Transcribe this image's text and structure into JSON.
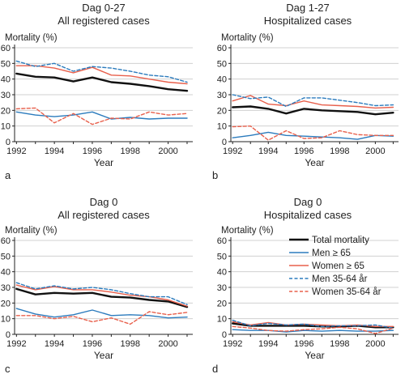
{
  "legend": [
    {
      "label": "Total mortality",
      "color": "#111111",
      "dash": "solid",
      "width": 2.4
    },
    {
      "label": "Men ≥ 65",
      "color": "#2b7bbd",
      "dash": "solid",
      "width": 1.4
    },
    {
      "label": "Women ≥ 65",
      "color": "#e8604c",
      "dash": "solid",
      "width": 1.4
    },
    {
      "label": "Men 35-64 år",
      "color": "#2b7bbd",
      "dash": "dashed",
      "width": 1.4
    },
    {
      "label": "Women 35-64 år",
      "color": "#e8604c",
      "dash": "dashed",
      "width": 1.4
    }
  ],
  "chart_data": [
    {
      "type": "line",
      "panel_label": "a",
      "title": "Dag 0-27",
      "subtitle": "All registered cases",
      "ylabel": "Mortality (%)",
      "xlabel": "Year",
      "x": [
        1992,
        1993,
        1994,
        1995,
        1996,
        1997,
        1998,
        1999,
        2000,
        2001
      ],
      "xticks": [
        1992,
        1994,
        1996,
        1998,
        2000
      ],
      "ylim": [
        0,
        60
      ],
      "yticks": [
        0,
        10,
        20,
        30,
        40,
        50,
        60
      ],
      "grid": true,
      "series": [
        {
          "name": "Total mortality",
          "values": [
            43.5,
            41.5,
            41,
            38.5,
            41,
            38,
            37,
            35.5,
            33.5,
            32.5
          ]
        },
        {
          "name": "Men ≥ 65",
          "values": [
            19,
            17,
            16,
            17,
            19,
            14.5,
            15.5,
            14.5,
            15,
            15
          ]
        },
        {
          "name": "Women ≥ 65",
          "values": [
            48.5,
            48.5,
            47,
            44,
            47.5,
            42.5,
            42,
            40,
            38,
            37
          ]
        },
        {
          "name": "Men 35-64 år",
          "values": [
            51.5,
            48,
            50,
            45,
            48,
            47,
            45,
            42.5,
            41.5,
            38
          ]
        },
        {
          "name": "Women 35-64 år",
          "values": [
            21,
            21.5,
            12,
            18,
            11,
            15,
            14.5,
            19,
            17,
            18
          ]
        }
      ]
    },
    {
      "type": "line",
      "panel_label": "b",
      "title": "Dag 1-27",
      "subtitle": "Hospitalized cases",
      "ylabel": "Mortality (%)",
      "xlabel": "Year",
      "x": [
        1992,
        1993,
        1994,
        1995,
        1996,
        1997,
        1998,
        1999,
        2000,
        2001
      ],
      "xticks": [
        1992,
        1994,
        1996,
        1998,
        2000
      ],
      "ylim": [
        0,
        60
      ],
      "yticks": [
        0,
        10,
        20,
        30,
        40,
        50,
        60
      ],
      "grid": true,
      "series": [
        {
          "name": "Total mortality",
          "values": [
            22,
            22.5,
            21,
            18,
            21,
            20,
            19.5,
            19,
            17.5,
            18.5
          ]
        },
        {
          "name": "Men ≥ 65",
          "values": [
            2.5,
            4,
            6,
            4,
            3.5,
            3,
            2.5,
            1.5,
            4,
            3.5
          ]
        },
        {
          "name": "Women ≥ 65",
          "values": [
            26,
            29.5,
            24,
            23,
            26,
            23.5,
            23,
            22.5,
            21.5,
            22
          ]
        },
        {
          "name": "Men 35-64 år",
          "values": [
            30,
            27.5,
            28.5,
            22.5,
            28,
            28,
            26.5,
            25,
            23,
            23.5
          ]
        },
        {
          "name": "Women 35-64 år",
          "values": [
            9.5,
            10,
            1,
            7,
            2,
            2.5,
            7,
            4.5,
            4,
            4
          ]
        }
      ]
    },
    {
      "type": "line",
      "panel_label": "c",
      "title": "Dag 0",
      "subtitle": "All registered cases",
      "ylabel": "Mortality (%)",
      "xlabel": "Year",
      "x": [
        1992,
        1993,
        1994,
        1995,
        1996,
        1997,
        1998,
        1999,
        2000,
        2001
      ],
      "xticks": [
        1992,
        1994,
        1996,
        1998,
        2000
      ],
      "ylim": [
        0,
        60
      ],
      "yticks": [
        0,
        10,
        20,
        30,
        40,
        50,
        60
      ],
      "grid": true,
      "series": [
        {
          "name": "Total mortality",
          "values": [
            29,
            25.5,
            26.5,
            26,
            26.5,
            24,
            23.5,
            22,
            21,
            17.5
          ]
        },
        {
          "name": "Men ≥ 65",
          "values": [
            16.5,
            13,
            11,
            12.5,
            15.5,
            12,
            12.5,
            12,
            10.5,
            11
          ]
        },
        {
          "name": "Women ≥ 65",
          "values": [
            31.5,
            28.5,
            30.5,
            28.5,
            28.5,
            27,
            25,
            24,
            22,
            18
          ]
        },
        {
          "name": "Men 35-64 år",
          "values": [
            33,
            29,
            31,
            29,
            30,
            28.5,
            26,
            24,
            24,
            19
          ]
        },
        {
          "name": "Women 35-64 år",
          "values": [
            12,
            12,
            10,
            11.5,
            8,
            10.5,
            6.5,
            14.5,
            12.5,
            14
          ]
        }
      ]
    },
    {
      "type": "line",
      "panel_label": "d",
      "title": "Dag 0",
      "subtitle": "Hospitalized cases",
      "ylabel": "Mortality (%)",
      "xlabel": "Year",
      "x": [
        1992,
        1993,
        1994,
        1995,
        1996,
        1997,
        1998,
        1999,
        2000,
        2001
      ],
      "xticks": [
        1992,
        1994,
        1996,
        1998,
        2000
      ],
      "ylim": [
        0,
        60
      ],
      "yticks": [
        0,
        10,
        20,
        30,
        40,
        50,
        60
      ],
      "grid": true,
      "series": [
        {
          "name": "Total mortality",
          "values": [
            7,
            5.5,
            5.5,
            5.5,
            5.5,
            5,
            5,
            5.5,
            4.5,
            4.5
          ]
        },
        {
          "name": "Men ≥ 65",
          "values": [
            3,
            2.5,
            2.5,
            1.5,
            2.5,
            2,
            2.5,
            2,
            2,
            2.5
          ]
        },
        {
          "name": "Women ≥ 65",
          "values": [
            8,
            6,
            7.5,
            6,
            6.5,
            6,
            5.5,
            6,
            5,
            5
          ]
        },
        {
          "name": "Men 35-64 år",
          "values": [
            9,
            5.5,
            7,
            6,
            6.5,
            5,
            5.5,
            5.5,
            6,
            4
          ]
        },
        {
          "name": "Women 35-64 år",
          "values": [
            5,
            4,
            2.5,
            2,
            3,
            3.5,
            4.5,
            3.5,
            0.5,
            4
          ]
        }
      ]
    }
  ]
}
